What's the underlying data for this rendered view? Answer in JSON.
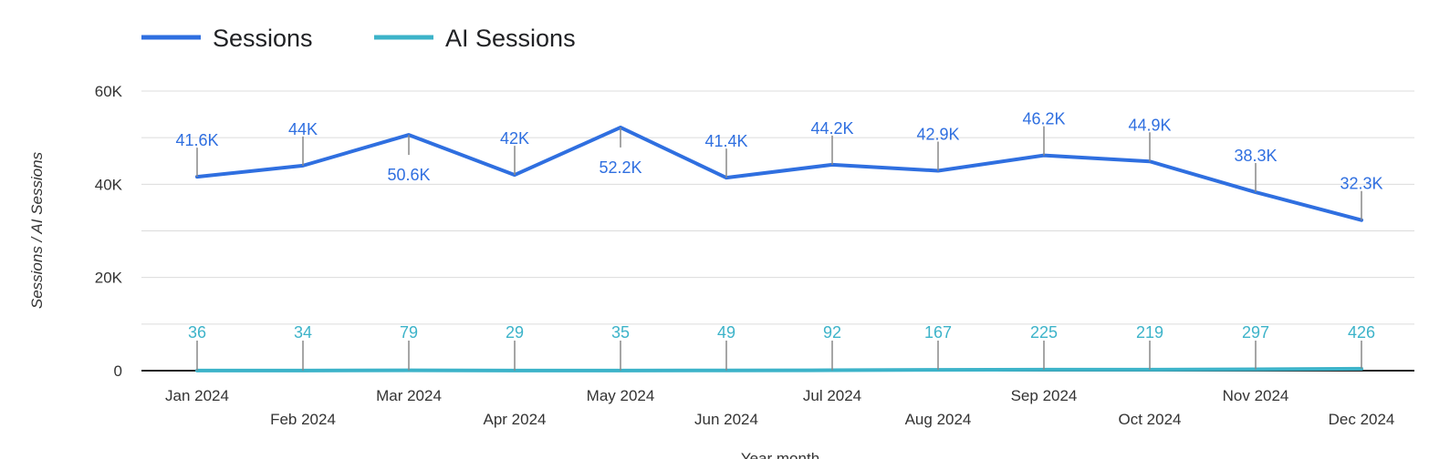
{
  "chart_data": {
    "type": "line",
    "categories": [
      "Jan 2024",
      "Feb 2024",
      "Mar 2024",
      "Apr 2024",
      "May 2024",
      "Jun 2024",
      "Jul 2024",
      "Aug 2024",
      "Sep 2024",
      "Oct 2024",
      "Nov 2024",
      "Dec 2024"
    ],
    "series": [
      {
        "name": "Sessions",
        "color": "#2f6fe0",
        "values": [
          41600,
          44000,
          50600,
          42000,
          52200,
          41400,
          44200,
          42900,
          46200,
          44900,
          38300,
          32300
        ],
        "labels": [
          "41.6K",
          "44K",
          "50.6K",
          "42K",
          "52.2K",
          "41.4K",
          "44.2K",
          "42.9K",
          "46.2K",
          "44.9K",
          "38.3K",
          "32.3K"
        ]
      },
      {
        "name": "AI Sessions",
        "color": "#3cb3c9",
        "values": [
          36,
          34,
          79,
          29,
          35,
          49,
          92,
          167,
          225,
          219,
          297,
          426
        ],
        "labels": [
          "36",
          "34",
          "79",
          "29",
          "35",
          "49",
          "92",
          "167",
          "225",
          "219",
          "297",
          "426"
        ]
      }
    ],
    "ylabel": "Sessions / AI Sessions",
    "xlabel": "Year month",
    "ylim": [
      0,
      60000
    ],
    "yticks": [
      0,
      20000,
      40000,
      60000
    ],
    "ytick_labels": [
      "0",
      "20K",
      "40K",
      "60K"
    ],
    "grid": true,
    "legend_position": "top-left"
  }
}
